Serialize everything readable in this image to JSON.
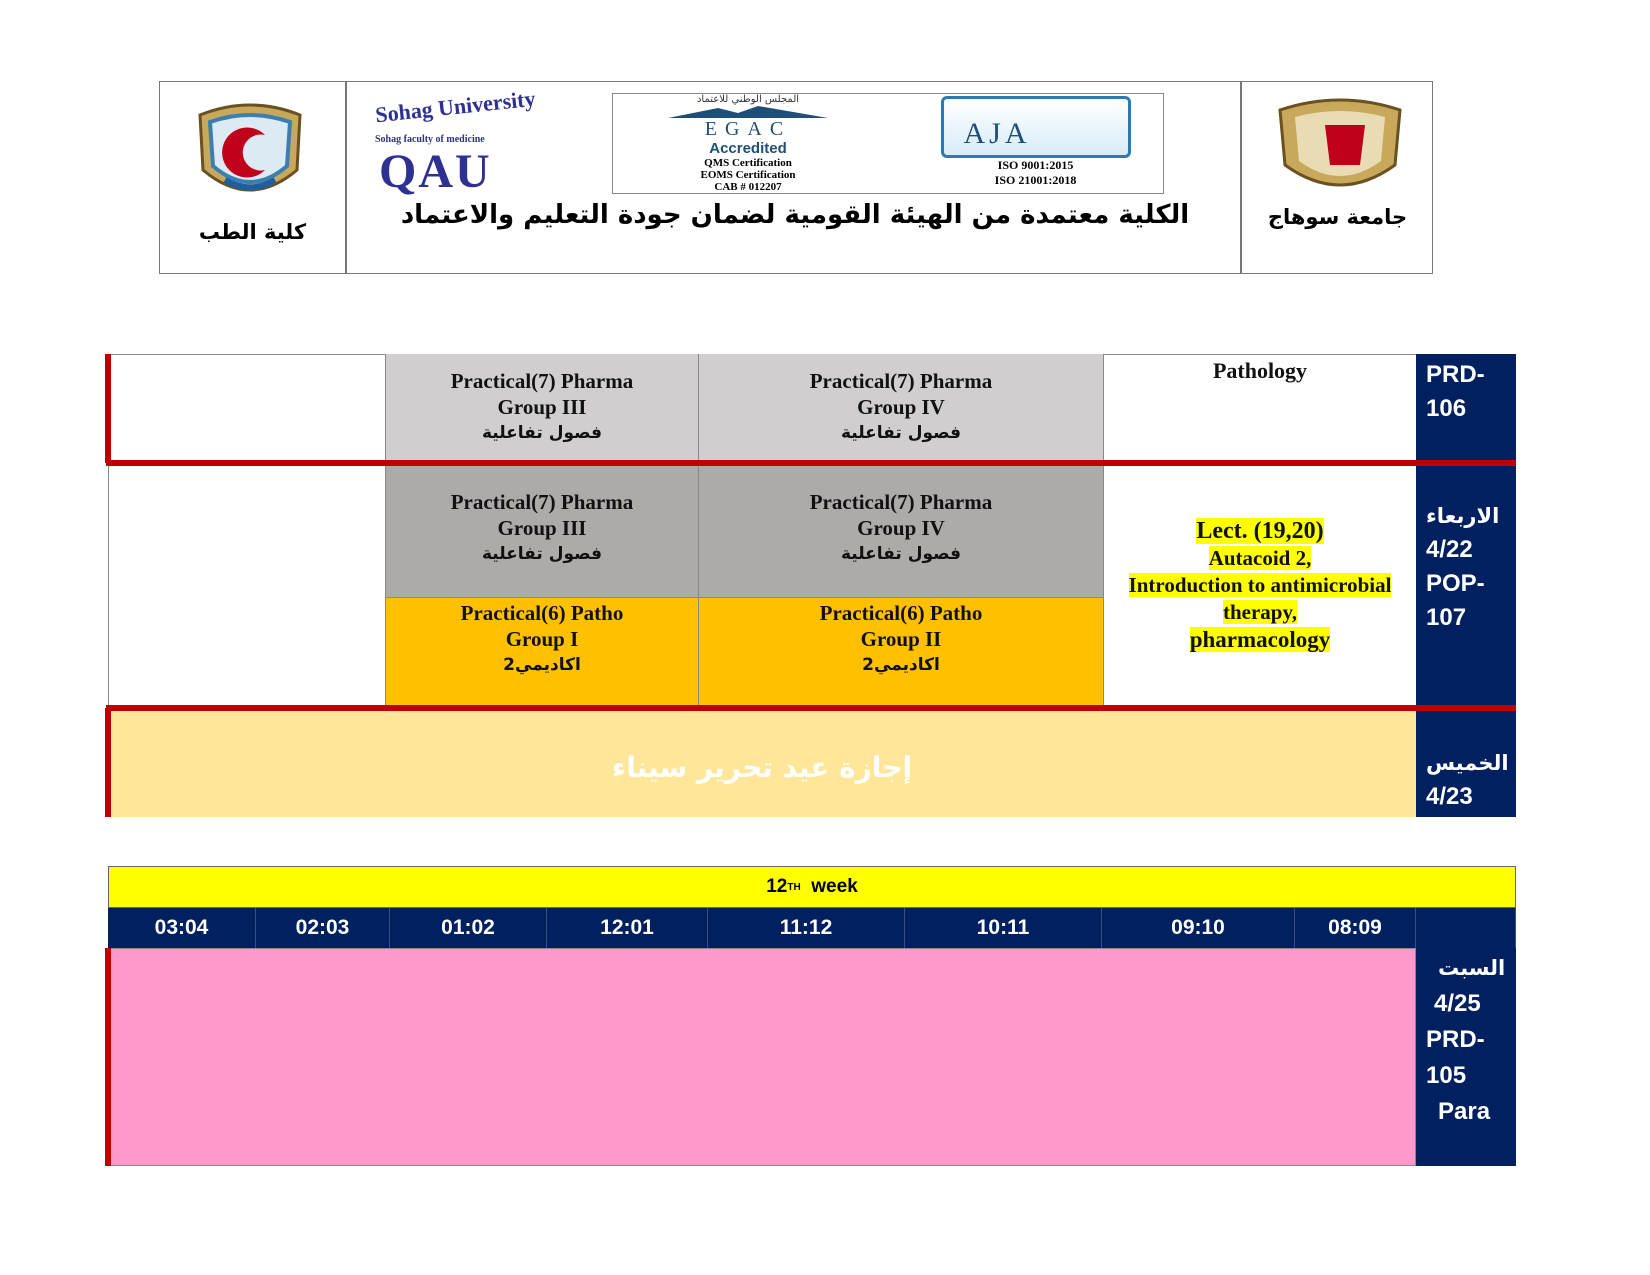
{
  "header": {
    "left_logo_caption": "كلية الطب",
    "right_logo_caption": "جامعة  سوهاج",
    "qau_logo": {
      "arc_text": "Sohag University",
      "sub_text": "Sohag faculty of medicine",
      "big_text": "QAU"
    },
    "egac_logo": {
      "arabic_text": "المجلس الوطني للاعتماد",
      "name": "EGAC",
      "accredited": "Accredited",
      "lines": [
        "QMS Certification",
        "EOMS Certification",
        "CAB # 012207"
      ]
    },
    "aja_logo": {
      "name": "AJA",
      "lines": [
        "ISO 9001:2015",
        "ISO 21001:2018"
      ]
    },
    "accreditation_text": "الكلية معتمدة من الهيئة القومية لضمان جودة التعليم والاعتماد"
  },
  "table1": {
    "rows": [
      {
        "day": [
          "PRD-",
          "106"
        ],
        "cells": [
          {
            "lines": [
              "Practical(7) Pharma",
              "Group III",
              "فصول تفاعلية"
            ]
          },
          {
            "lines": [
              "Practical(7) Pharma",
              "Group IV",
              "فصول تفاعلية"
            ]
          },
          {
            "lines": [
              "Pathology"
            ]
          }
        ]
      },
      {
        "day": [
          "الاربعاء",
          "4/22",
          "POP-",
          "107"
        ],
        "cells": [
          {
            "lines": [
              "Practical(7) Pharma",
              "Group III",
              "فصول تفاعلية"
            ]
          },
          {
            "lines": [
              "Practical(7) Pharma",
              "Group IV",
              "فصول تفاعلية"
            ]
          },
          {
            "lines": [
              "Practical(6) Patho",
              "Group I",
              "اكاديمي2"
            ]
          },
          {
            "lines": [
              "Practical(6) Patho",
              "Group II",
              "اكاديمي2"
            ]
          },
          {
            "lines": [
              "Lect. (19,20)",
              "Autacoid 2,",
              "Introduction to antimicrobial",
              "therapy,",
              "pharmacology"
            ]
          }
        ]
      },
      {
        "day": [
          "الخميس",
          "4/23"
        ],
        "holiday": "إجازة عيد تحرير سيناء"
      }
    ]
  },
  "table2": {
    "week_label": "12",
    "week_sup": "TH",
    "week_word": "week",
    "times": [
      "03:04",
      "02:03",
      "01:02",
      "12:01",
      "11:12",
      "10:11",
      "09:10",
      "08:09"
    ],
    "day": [
      "السبت",
      "4/25",
      "PRD-",
      "105",
      "Para"
    ]
  },
  "colors": {
    "navy": "#002060",
    "red": "#c00000",
    "yellow": "#ffff00",
    "orange": "#ffc000",
    "pink": "#ff99cc",
    "holiday": "#ffe699"
  }
}
